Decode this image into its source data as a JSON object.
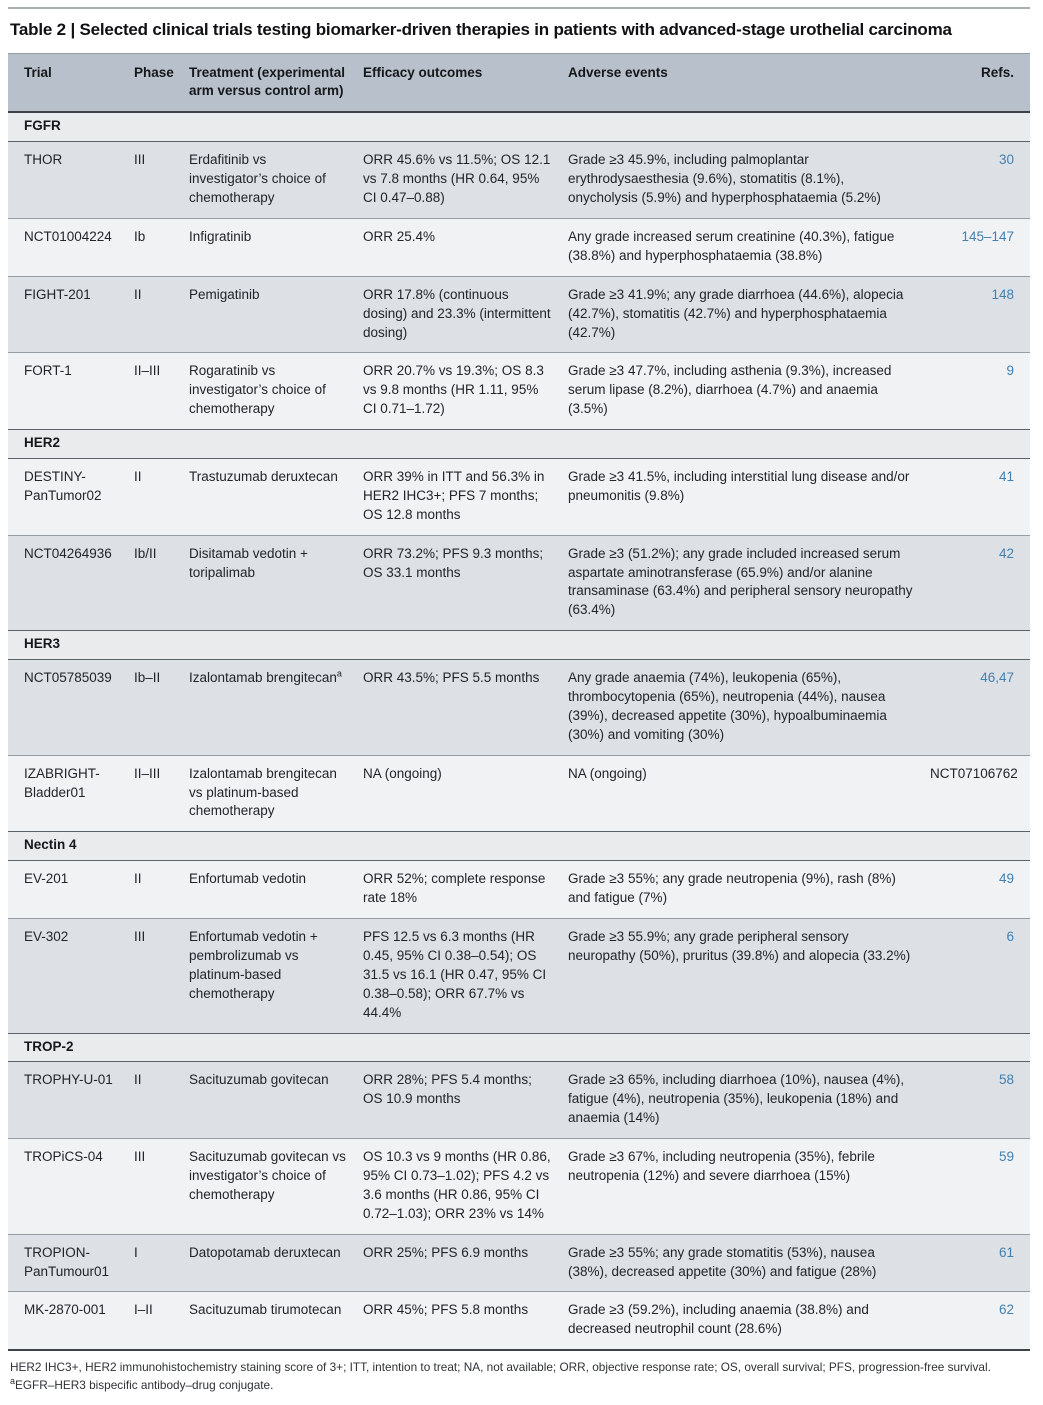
{
  "title": "Table 2 | Selected clinical trials testing biomarker-driven therapies in patients with advanced-stage urothelial carcinoma",
  "columns": {
    "trial": "Trial",
    "phase": "Phase",
    "treatment": "Treatment (experimental arm versus control arm)",
    "efficacy": "Efficacy outcomes",
    "adverse": "Adverse events",
    "refs": "Refs."
  },
  "colors": {
    "header_bg": "#b8c1cb",
    "section_bg": "#e9ebed",
    "row_dark": "#dde1e6",
    "row_light": "#f0f2f4",
    "reference_link_blue": "#4280b0",
    "rule_dark": "#3d4249"
  },
  "sections": [
    {
      "name": "FGFR",
      "rows": [
        {
          "trial": "THOR",
          "phase": "III",
          "treatment": "Erdafitinib vs investigator’s choice of chemotherapy",
          "efficacy": "ORR 45.6% vs 11.5%; OS 12.1 vs 7.8 months (HR 0.64, 95% CI 0.47–0.88)",
          "adverse": "Grade ≥3 45.9%, including palmoplantar erythrodysaesthesia (9.6%), stomatitis (8.1%), onycholysis (5.9%) and hyperphosphataemia (5.2%)",
          "ref": "30",
          "ref_link": true
        },
        {
          "trial": "NCT01004224",
          "phase": "Ib",
          "treatment": "Infigratinib",
          "efficacy": "ORR 25.4%",
          "adverse": "Any grade increased serum creatinine (40.3%), fatigue (38.8%) and hyperphosphataemia (38.8%)",
          "ref": "145–147",
          "ref_link": true
        },
        {
          "trial": "FIGHT-201",
          "phase": "II",
          "treatment": "Pemigatinib",
          "efficacy": "ORR 17.8% (continuous dosing) and 23.3% (intermittent dosing)",
          "adverse": "Grade ≥3 41.9%; any grade diarrhoea (44.6%), alopecia (42.7%), stomatitis (42.7%) and hyperphosphataemia (42.7%)",
          "ref": "148",
          "ref_link": true
        },
        {
          "trial": "FORT-1",
          "phase": "II–III",
          "treatment": "Rogaratinib vs investigator’s choice of chemotherapy",
          "efficacy": "ORR 20.7% vs 19.3%; OS 8.3 vs 9.8 months (HR 1.11, 95% CI 0.71–1.72)",
          "adverse": "Grade ≥3 47.7%, including asthenia (9.3%), increased serum lipase (8.2%), diarrhoea (4.7%) and anaemia (3.5%)",
          "ref": "9",
          "ref_link": true
        }
      ]
    },
    {
      "name": "HER2",
      "rows": [
        {
          "trial": "DESTINY-PanTumor02",
          "phase": "II",
          "treatment": "Trastuzumab deruxtecan",
          "efficacy": "ORR 39% in ITT and 56.3% in HER2 IHC3+; PFS 7 months; OS 12.8 months",
          "adverse": "Grade ≥3 41.5%, including interstitial lung disease and/or pneumonitis (9.8%)",
          "ref": "41",
          "ref_link": true
        },
        {
          "trial": "NCT04264936",
          "phase": "Ib/II",
          "treatment": "Disitamab vedotin + toripalimab",
          "efficacy": "ORR 73.2%; PFS 9.3 months; OS 33.1 months",
          "adverse": "Grade ≥3 (51.2%); any grade included increased serum aspartate aminotransferase (65.9%) and/or alanine transaminase (63.4%) and peripheral sensory neuropathy (63.4%)",
          "ref": "42",
          "ref_link": true
        }
      ]
    },
    {
      "name": "HER3",
      "rows": [
        {
          "trial": "NCT05785039",
          "phase": "Ib–II",
          "treatment": "Izalontamab brengitecan",
          "treatment_sup": "a",
          "efficacy": "ORR 43.5%; PFS 5.5 months",
          "adverse": "Any grade anaemia (74%), leukopenia (65%), thrombocytopenia (65%), neutropenia (44%), nausea (39%), decreased appetite (30%), hypoalbuminaemia (30%) and vomiting (30%)",
          "ref": "46,47",
          "ref_link": true
        },
        {
          "trial": "IZABRIGHT-Bladder01",
          "phase": "II–III",
          "treatment": "Izalontamab brengitecan vs platinum-based chemotherapy",
          "efficacy": "NA (ongoing)",
          "adverse": "NA (ongoing)",
          "ref": "NCT07106762",
          "ref_link": false
        }
      ]
    },
    {
      "name": "Nectin 4",
      "rows": [
        {
          "trial": "EV-201",
          "phase": "II",
          "treatment": "Enfortumab vedotin",
          "efficacy": "ORR 52%; complete response rate 18%",
          "adverse": "Grade ≥3 55%; any grade neutropenia (9%), rash (8%) and fatigue (7%)",
          "ref": "49",
          "ref_link": true
        },
        {
          "trial": "EV-302",
          "phase": "III",
          "treatment": "Enfortumab vedotin + pembrolizumab vs platinum-based chemotherapy",
          "efficacy": "PFS 12.5 vs 6.3 months (HR 0.45, 95% CI 0.38–0.54); OS 31.5 vs 16.1 (HR 0.47, 95% CI 0.38–0.58); ORR 67.7% vs 44.4%",
          "adverse": "Grade ≥3 55.9%; any grade peripheral sensory neuropathy (50%), pruritus (39.8%) and alopecia (33.2%)",
          "ref": "6",
          "ref_link": true
        }
      ]
    },
    {
      "name": "TROP-2",
      "rows": [
        {
          "trial": "TROPHY-U-01",
          "phase": "II",
          "treatment": "Sacituzumab govitecan",
          "efficacy": "ORR 28%; PFS 5.4 months; OS 10.9 months",
          "adverse": "Grade ≥3 65%, including diarrhoea (10%), nausea (4%), fatigue (4%), neutropenia (35%), leukopenia (18%) and anaemia (14%)",
          "ref": "58",
          "ref_link": true
        },
        {
          "trial": "TROPiCS-04",
          "phase": "III",
          "treatment": "Sacituzumab govitecan vs investigator’s choice of chemotherapy",
          "efficacy": "OS 10.3 vs 9 months (HR 0.86, 95% CI 0.73–1.02); PFS 4.2 vs 3.6 months (HR 0.86, 95% CI 0.72–1.03); ORR 23% vs 14%",
          "adverse": "Grade ≥3 67%, including neutropenia (35%), febrile neutropenia (12%) and severe diarrhoea (15%)",
          "ref": "59",
          "ref_link": true
        },
        {
          "trial": "TROPION-PanTumour01",
          "phase": "I",
          "treatment": "Datopotamab deruxtecan",
          "efficacy": "ORR 25%; PFS 6.9 months",
          "adverse": "Grade ≥3 55%; any grade stomatitis (53%), nausea (38%), decreased appetite (30%) and fatigue (28%)",
          "ref": "61",
          "ref_link": true
        },
        {
          "trial": "MK-2870-001",
          "phase": "I–II",
          "treatment": "Sacituzumab tirumotecan",
          "efficacy": "ORR 45%; PFS 5.8 months",
          "adverse": "Grade ≥3 (59.2%), including anaemia (38.8%) and decreased neutrophil count (28.6%)",
          "ref": "62",
          "ref_link": true
        }
      ]
    }
  ],
  "footnotes": {
    "abbreviations": "HER2 IHC3+, HER2 immunohistochemistry staining score of 3+; ITT, intention to treat; NA, not available; ORR, objective response rate; OS, overall survival; PFS, progression-free survival.",
    "note_sup": "a",
    "note_text": "EGFR–HER3 bispecific antibody–drug conjugate."
  }
}
